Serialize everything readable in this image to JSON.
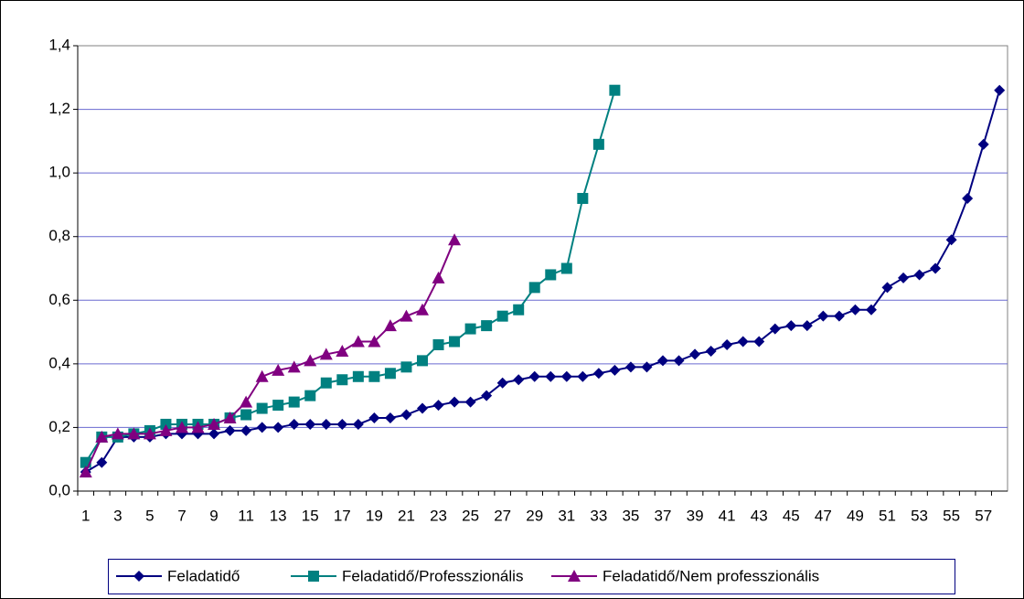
{
  "chart_data": {
    "type": "line",
    "categories": [
      "1",
      null,
      "3",
      null,
      "5",
      null,
      "7",
      null,
      "9",
      null,
      "11",
      null,
      "13",
      null,
      "15",
      null,
      "17",
      null,
      "19",
      null,
      "21",
      null,
      "23",
      null,
      "25",
      null,
      "27",
      null,
      "29",
      null,
      "31",
      null,
      "33",
      null,
      "35",
      null,
      "37",
      null,
      "39",
      null,
      "41",
      null,
      "43",
      null,
      "45",
      null,
      "47",
      null,
      "49",
      null,
      "51",
      null,
      "53",
      null,
      "55",
      null,
      "57",
      null
    ],
    "series": [
      {
        "name": "Feladatidő",
        "color": "#000080",
        "marker": "diamond",
        "values": [
          0.06,
          0.09,
          0.17,
          0.17,
          0.17,
          0.18,
          0.18,
          0.18,
          0.18,
          0.19,
          0.19,
          0.2,
          0.2,
          0.21,
          0.21,
          0.21,
          0.21,
          0.21,
          0.23,
          0.23,
          0.24,
          0.26,
          0.27,
          0.28,
          0.28,
          0.3,
          0.34,
          0.35,
          0.36,
          0.36,
          0.36,
          0.36,
          0.37,
          0.38,
          0.39,
          0.39,
          0.41,
          0.41,
          0.43,
          0.44,
          0.46,
          0.47,
          0.47,
          0.51,
          0.52,
          0.52,
          0.55,
          0.55,
          0.57,
          0.57,
          0.64,
          0.67,
          0.68,
          0.7,
          0.79,
          0.92,
          1.09,
          1.26
        ]
      },
      {
        "name": "Feladatidő/Professzionális",
        "color": "#008080",
        "marker": "square",
        "values": [
          0.09,
          0.17,
          0.17,
          0.18,
          0.19,
          0.21,
          0.21,
          0.21,
          0.21,
          0.23,
          0.24,
          0.26,
          0.27,
          0.28,
          0.3,
          0.34,
          0.35,
          0.36,
          0.36,
          0.37,
          0.39,
          0.41,
          0.46,
          0.47,
          0.51,
          0.52,
          0.55,
          0.57,
          0.64,
          0.68,
          0.7,
          0.92,
          1.09,
          1.26,
          null,
          null,
          null,
          null,
          null,
          null,
          null,
          null,
          null,
          null,
          null,
          null,
          null,
          null,
          null,
          null,
          null,
          null,
          null,
          null,
          null,
          null,
          null,
          null
        ]
      },
      {
        "name": "Feladatidő/Nem professzionális",
        "color": "#800080",
        "marker": "triangle",
        "values": [
          0.06,
          0.17,
          0.18,
          0.18,
          0.18,
          0.19,
          0.2,
          0.2,
          0.21,
          0.23,
          0.28,
          0.36,
          0.38,
          0.39,
          0.41,
          0.43,
          0.44,
          0.47,
          0.47,
          0.52,
          0.55,
          0.57,
          0.67,
          0.79,
          null,
          null,
          null,
          null,
          null,
          null,
          null,
          null,
          null,
          null,
          null,
          null,
          null,
          null,
          null,
          null,
          null,
          null,
          null,
          null,
          null,
          null,
          null,
          null,
          null,
          null,
          null,
          null,
          null,
          null,
          null,
          null,
          null,
          null
        ]
      }
    ],
    "ylim": [
      0,
      1.4
    ],
    "yticks": [
      {
        "value": 0,
        "label": "0,0"
      },
      {
        "value": 0.2,
        "label": "0,2"
      },
      {
        "value": 0.4,
        "label": "0,4"
      },
      {
        "value": 0.6,
        "label": "0,6"
      },
      {
        "value": 0.8,
        "label": "0,8"
      },
      {
        "value": 1.0,
        "label": "1,0"
      },
      {
        "value": 1.2,
        "label": "1,2"
      },
      {
        "value": 1.4,
        "label": "1,4"
      }
    ],
    "grid": true,
    "legend": "bottom"
  }
}
